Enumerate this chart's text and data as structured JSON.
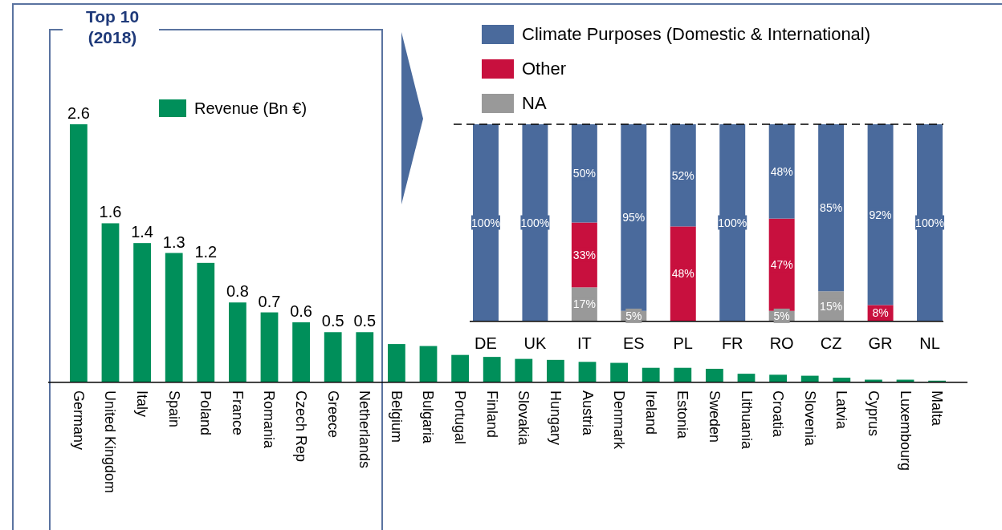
{
  "chart_data": [
    {
      "type": "bar",
      "annotations": [
        "Top 10\n(2018)"
      ],
      "legend": "top",
      "categories": [
        "Germany",
        "United Kingdom",
        "Italy",
        "Spain",
        "Poland",
        "France",
        "Romania",
        "Czech Rep",
        "Greece",
        "Netherlands",
        "Belgium",
        "Bulgaria",
        "Portugal",
        "Finland",
        "Slovakia",
        "Hungary",
        "Austria",
        "Denmark",
        "Ireland",
        "Estonia",
        "Sweden",
        "Lithuania",
        "Croatia",
        "Slovenia",
        "Latvia",
        "Cyprus",
        "Luxembourg",
        "Malta"
      ],
      "series": [
        {
          "name": "Revenue (Bn €)",
          "color": "#008f5a",
          "values": [
            2.6,
            1.6,
            1.4,
            1.3,
            1.2,
            0.8,
            0.7,
            0.6,
            0.5,
            0.5,
            0.38,
            0.36,
            0.27,
            0.25,
            0.23,
            0.22,
            0.2,
            0.19,
            0.14,
            0.14,
            0.13,
            0.08,
            0.07,
            0.06,
            0.04,
            0.02,
            0.02,
            0.01
          ],
          "value_labels": [
            "2.6",
            "1.6",
            "1.4",
            "1.3",
            "1.2",
            "0.8",
            "0.7",
            "0.6",
            "0.5",
            "0.5",
            null,
            null,
            null,
            null,
            null,
            null,
            null,
            null,
            null,
            null,
            null,
            null,
            null,
            null,
            null,
            null,
            null,
            null
          ]
        }
      ]
    },
    {
      "type": "bar",
      "stacked": true,
      "legend": "top",
      "categories": [
        "DE",
        "UK",
        "IT",
        "ES",
        "PL",
        "FR",
        "RO",
        "CZ",
        "GR",
        "NL"
      ],
      "ref_lines": [
        {
          "axis": "y",
          "value": 100,
          "line_style": "dashed",
          "color": "#000000"
        }
      ],
      "series": [
        {
          "name": "NA",
          "color": "#999999",
          "values": [
            null,
            null,
            17,
            5,
            null,
            null,
            5,
            15,
            null,
            null
          ],
          "value_labels": [
            null,
            null,
            "17%",
            "5%",
            null,
            null,
            "5%",
            "15%",
            null,
            null
          ]
        },
        {
          "name": "Other",
          "color": "#c8103e",
          "values": [
            null,
            null,
            33,
            null,
            48,
            null,
            47,
            null,
            8,
            null
          ],
          "value_labels": [
            null,
            null,
            "33%",
            null,
            "48%",
            null,
            "47%",
            null,
            "8%",
            null
          ]
        },
        {
          "name": "Climate Purposes (Domestic & International)",
          "color": "#4a6a9c",
          "values": [
            100,
            100,
            50,
            95,
            52,
            100,
            48,
            85,
            92,
            100
          ],
          "value_labels": [
            "100%",
            "100%",
            "50%",
            "95%",
            "52%",
            "100%",
            "48%",
            "85%",
            "92%",
            "100%"
          ]
        }
      ]
    }
  ]
}
